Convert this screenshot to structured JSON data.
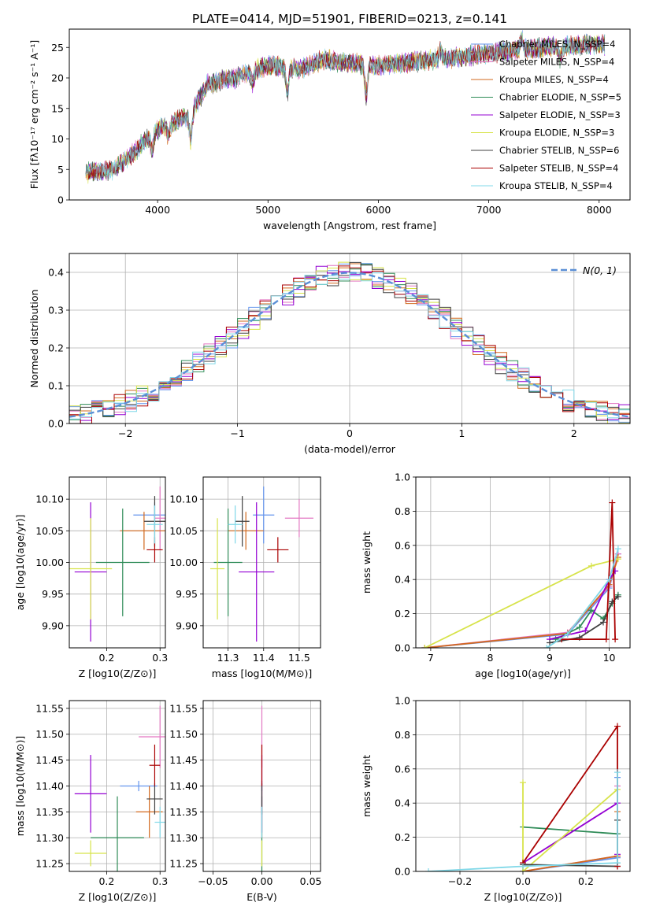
{
  "title": "PLATE=0414, MJD=51901, FIBERID=0213, z=0.141",
  "colors": {
    "chabrier_miles": "#6495ed",
    "salpeter_miles": "#e377c2",
    "kroupa_miles": "#d2691e",
    "chabrier_elodie": "#2e8b57",
    "salpeter_elodie": "#9400d3",
    "kroupa_elodie": "#d7e34a",
    "chabrier_stelib": "#404040",
    "salpeter_stelib": "#aa0000",
    "kroupa_stelib": "#80d8e8",
    "normal_curve": "#5b8fd6",
    "grid": "#b0b0b0"
  },
  "chart_data": [
    {
      "id": "spectrum",
      "type": "line",
      "xlabel": "wavelength [Angstrom, rest frame]",
      "ylabel": "Flux [fλ10⁻¹⁷ erg cm⁻² s⁻¹ A⁻¹]",
      "xlim": [
        3200,
        8280
      ],
      "ylim": [
        0,
        28
      ],
      "xticks": [
        4000,
        5000,
        6000,
        7000,
        8000
      ],
      "yticks": [
        0,
        5,
        10,
        15,
        20,
        25
      ],
      "x_range": [
        3350,
        8050
      ],
      "continuum": [
        [
          3350,
          4.5
        ],
        [
          3600,
          5
        ],
        [
          3800,
          8
        ],
        [
          3950,
          11
        ],
        [
          4100,
          12.5
        ],
        [
          4300,
          14
        ],
        [
          4450,
          19
        ],
        [
          4700,
          20
        ],
        [
          5000,
          22
        ],
        [
          5300,
          21.5
        ],
        [
          5500,
          23
        ],
        [
          6000,
          22
        ],
        [
          6500,
          23
        ],
        [
          7000,
          24
        ],
        [
          7500,
          25
        ],
        [
          8000,
          25.5
        ]
      ],
      "features": [
        [
          3950,
          -3
        ],
        [
          4100,
          -2
        ],
        [
          4300,
          -4
        ],
        [
          4860,
          -2
        ],
        [
          5175,
          -4
        ],
        [
          5890,
          -5
        ],
        [
          6563,
          1.5
        ],
        [
          7300,
          2
        ],
        [
          7650,
          -2
        ]
      ],
      "legend": [
        {
          "label": "Chabrier MILES, N_SSP=4",
          "color": "#6495ed"
        },
        {
          "label": "Salpeter MILES, N_SSP=4",
          "color": "#e377c2"
        },
        {
          "label": "Kroupa MILES, N_SSP=4",
          "color": "#d2691e"
        },
        {
          "label": "Chabrier ELODIE, N_SSP=5",
          "color": "#2e8b57"
        },
        {
          "label": "Salpeter ELODIE, N_SSP=3",
          "color": "#9400d3"
        },
        {
          "label": "Kroupa ELODIE, N_SSP=3",
          "color": "#d7e34a"
        },
        {
          "label": "Chabrier STELIB, N_SSP=6",
          "color": "#404040"
        },
        {
          "label": "Salpeter STELIB, N_SSP=4",
          "color": "#aa0000"
        },
        {
          "label": "Kroupa STELIB, N_SSP=4",
          "color": "#80d8e8"
        }
      ],
      "legend_position": "right",
      "grid": false
    },
    {
      "id": "residuals",
      "type": "step-histogram",
      "xlabel": "(data-model)/error",
      "ylabel": "Normed distribution",
      "xlim": [
        -2.5,
        2.5
      ],
      "ylim": [
        0,
        0.45
      ],
      "xticks": [
        -2,
        -1,
        0,
        1,
        2
      ],
      "yticks": [
        0.0,
        0.1,
        0.2,
        0.3,
        0.4
      ],
      "bin_width": 0.1,
      "curve_label": "N(0, 1)",
      "legend_position": "upper right",
      "grid": true
    },
    {
      "id": "age_vs_Z",
      "type": "errorbar",
      "xlabel": "Z [log10(Z/Z⊙)]",
      "ylabel": "age [log10(age/yr)]",
      "xlim": [
        0.13,
        0.31
      ],
      "ylim": [
        9.865,
        10.135
      ],
      "xticks": [
        0.2,
        0.3
      ],
      "yticks": [
        9.9,
        9.95,
        10.0,
        10.05,
        10.1
      ],
      "points": [
        {
          "x": 0.29,
          "y": 10.075,
          "xerr": 0.04,
          "yerr": 0.02,
          "color": "#6495ed"
        },
        {
          "x": 0.3,
          "y": 10.07,
          "xerr": 0.01,
          "yerr": 0.05,
          "color": "#e377c2"
        },
        {
          "x": 0.27,
          "y": 10.05,
          "xerr": 0.045,
          "yerr": 0.03,
          "color": "#d2691e"
        },
        {
          "x": 0.23,
          "y": 10.0,
          "xerr": 0.05,
          "yerr": 0.085,
          "color": "#2e8b57"
        },
        {
          "x": 0.17,
          "y": 9.985,
          "xerr": 0.03,
          "yerr": 0.11,
          "color": "#9400d3"
        },
        {
          "x": 0.17,
          "y": 9.99,
          "xerr": 0.04,
          "yerr": 0.08,
          "color": "#d7e34a"
        },
        {
          "x": 0.29,
          "y": 10.065,
          "xerr": 0.02,
          "yerr": 0.04,
          "color": "#404040"
        },
        {
          "x": 0.29,
          "y": 10.02,
          "xerr": 0.015,
          "yerr": 0.02,
          "color": "#aa0000"
        },
        {
          "x": 0.29,
          "y": 10.06,
          "xerr": 0.015,
          "yerr": 0.03,
          "color": "#80d8e8"
        }
      ]
    },
    {
      "id": "age_vs_mass",
      "type": "errorbar",
      "xlabel": "mass [log10(M/M⊙)]",
      "ylabel": "",
      "xlim": [
        11.23,
        11.56
      ],
      "ylim": [
        9.865,
        10.135
      ],
      "xticks": [
        11.3,
        11.4,
        11.5
      ],
      "yticks": [
        9.9,
        9.95,
        10.0,
        10.05,
        10.1
      ],
      "points": [
        {
          "x": 11.4,
          "y": 10.075,
          "xerr": 0.03,
          "yerr": 0.045,
          "color": "#6495ed"
        },
        {
          "x": 11.5,
          "y": 10.07,
          "xerr": 0.04,
          "yerr": 0.03,
          "color": "#e377c2"
        },
        {
          "x": 11.35,
          "y": 10.05,
          "xerr": 0.05,
          "yerr": 0.03,
          "color": "#d2691e"
        },
        {
          "x": 11.3,
          "y": 10.0,
          "xerr": 0.04,
          "yerr": 0.085,
          "color": "#2e8b57"
        },
        {
          "x": 11.38,
          "y": 9.985,
          "xerr": 0.05,
          "yerr": 0.11,
          "color": "#9400d3"
        },
        {
          "x": 11.27,
          "y": 9.99,
          "xerr": 0.02,
          "yerr": 0.08,
          "color": "#d7e34a"
        },
        {
          "x": 11.34,
          "y": 10.065,
          "xerr": 0.02,
          "yerr": 0.04,
          "color": "#404040"
        },
        {
          "x": 11.44,
          "y": 10.02,
          "xerr": 0.03,
          "yerr": 0.02,
          "color": "#aa0000"
        },
        {
          "x": 11.32,
          "y": 10.06,
          "xerr": 0.02,
          "yerr": 0.03,
          "color": "#80d8e8"
        }
      ]
    },
    {
      "id": "weight_vs_age",
      "type": "line",
      "xlabel": "age [log10(age/yr)]",
      "ylabel": "mass weight",
      "xlim": [
        6.75,
        10.35
      ],
      "ylim": [
        0,
        1.0
      ],
      "xticks": [
        7,
        8,
        9,
        10
      ],
      "yticks": [
        0.0,
        0.2,
        0.4,
        0.6,
        0.8,
        1.0
      ],
      "series": [
        {
          "color": "#6495ed",
          "points": [
            [
              6.9,
              0.0
            ],
            [
              9.3,
              0.08
            ],
            [
              10.0,
              0.35
            ],
            [
              10.15,
              0.55
            ]
          ]
        },
        {
          "color": "#e377c2",
          "points": [
            [
              6.9,
              0.0
            ],
            [
              9.3,
              0.09
            ],
            [
              10.0,
              0.36
            ],
            [
              10.15,
              0.55
            ]
          ]
        },
        {
          "color": "#d2691e",
          "points": [
            [
              6.9,
              0.0
            ],
            [
              9.3,
              0.085
            ],
            [
              10.0,
              0.37
            ],
            [
              10.15,
              0.53
            ]
          ]
        },
        {
          "color": "#2e8b57",
          "points": [
            [
              9.1,
              0.05
            ],
            [
              9.5,
              0.12
            ],
            [
              9.7,
              0.22
            ],
            [
              9.9,
              0.17
            ],
            [
              10.05,
              0.26
            ],
            [
              10.15,
              0.31
            ]
          ]
        },
        {
          "color": "#9400d3",
          "points": [
            [
              9.0,
              0.05
            ],
            [
              9.6,
              0.1
            ],
            [
              10.0,
              0.4
            ],
            [
              10.1,
              0.45
            ]
          ]
        },
        {
          "color": "#d7e34a",
          "points": [
            [
              6.9,
              0.0
            ],
            [
              9.7,
              0.48
            ],
            [
              10.15,
              0.52
            ]
          ]
        },
        {
          "color": "#404040",
          "points": [
            [
              9.0,
              0.03
            ],
            [
              9.5,
              0.06
            ],
            [
              9.9,
              0.15
            ],
            [
              10.05,
              0.27
            ],
            [
              10.15,
              0.3
            ]
          ]
        },
        {
          "color": "#aa0000",
          "points": [
            [
              9.2,
              0.05
            ],
            [
              9.95,
              0.05
            ],
            [
              10.05,
              0.85
            ],
            [
              10.1,
              0.05
            ]
          ]
        },
        {
          "color": "#80d8e8",
          "points": [
            [
              8.95,
              0.0
            ],
            [
              9.3,
              0.08
            ],
            [
              10.0,
              0.4
            ],
            [
              10.15,
              0.58
            ]
          ]
        }
      ],
      "grid": true
    },
    {
      "id": "mass_vs_Z",
      "type": "errorbar",
      "xlabel": "Z [log10(Z/Z⊙)]",
      "ylabel": "mass [log10(M/M⊙)]",
      "xlim": [
        0.13,
        0.31
      ],
      "ylim": [
        11.235,
        11.565
      ],
      "xticks": [
        0.2,
        0.3
      ],
      "yticks": [
        11.25,
        11.3,
        11.35,
        11.4,
        11.45,
        11.5,
        11.55
      ],
      "points": [
        {
          "x": 0.26,
          "y": 11.4,
          "xerr": 0.035,
          "yerr": 0.01,
          "color": "#6495ed"
        },
        {
          "x": 0.3,
          "y": 11.495,
          "xerr": 0.04,
          "yerr": 0.06,
          "color": "#e377c2"
        },
        {
          "x": 0.28,
          "y": 11.35,
          "xerr": 0.025,
          "yerr": 0.05,
          "color": "#d2691e"
        },
        {
          "x": 0.22,
          "y": 11.3,
          "xerr": 0.05,
          "yerr": 0.08,
          "color": "#2e8b57"
        },
        {
          "x": 0.17,
          "y": 11.385,
          "xerr": 0.03,
          "yerr": 0.075,
          "color": "#9400d3"
        },
        {
          "x": 0.17,
          "y": 11.27,
          "xerr": 0.03,
          "yerr": 0.025,
          "color": "#d7e34a"
        },
        {
          "x": 0.29,
          "y": 11.375,
          "xerr": 0.015,
          "yerr": 0.03,
          "color": "#404040"
        },
        {
          "x": 0.29,
          "y": 11.44,
          "xerr": 0.01,
          "yerr": 0.04,
          "color": "#aa0000"
        },
        {
          "x": 0.3,
          "y": 11.33,
          "xerr": 0.01,
          "yerr": 0.03,
          "color": "#80d8e8"
        }
      ]
    },
    {
      "id": "mass_vs_ebv",
      "type": "errorbar",
      "xlabel": "E(B-V)",
      "ylabel": "",
      "xlim": [
        -0.06,
        0.06
      ],
      "ylim": [
        11.235,
        11.565
      ],
      "xticks": [
        -0.05,
        0.0,
        0.05
      ],
      "yticks": [
        11.25,
        11.3,
        11.35,
        11.4,
        11.45,
        11.5,
        11.55
      ],
      "points": [
        {
          "x": 0.0,
          "y": 11.4,
          "xerr": 0.0,
          "yerr": 0.01,
          "color": "#6495ed"
        },
        {
          "x": 0.0,
          "y": 11.495,
          "xerr": 0.0,
          "yerr": 0.06,
          "color": "#e377c2"
        },
        {
          "x": 0.0,
          "y": 11.35,
          "xerr": 0.0,
          "yerr": 0.05,
          "color": "#d2691e"
        },
        {
          "x": 0.0,
          "y": 11.3,
          "xerr": 0.0,
          "yerr": 0.08,
          "color": "#2e8b57"
        },
        {
          "x": 0.0,
          "y": 11.385,
          "xerr": 0.0,
          "yerr": 0.075,
          "color": "#9400d3"
        },
        {
          "x": 0.0,
          "y": 11.27,
          "xerr": 0.0,
          "yerr": 0.025,
          "color": "#d7e34a"
        },
        {
          "x": 0.0,
          "y": 11.375,
          "xerr": 0.0,
          "yerr": 0.03,
          "color": "#404040"
        },
        {
          "x": 0.0,
          "y": 11.44,
          "xerr": 0.0,
          "yerr": 0.04,
          "color": "#aa0000"
        },
        {
          "x": 0.0,
          "y": 11.33,
          "xerr": 0.0,
          "yerr": 0.03,
          "color": "#80d8e8"
        }
      ]
    },
    {
      "id": "weight_vs_Z",
      "type": "line",
      "xlabel": "Z [log10(Z/Z⊙)]",
      "ylabel": "mass weight",
      "xlim": [
        -0.34,
        0.34
      ],
      "ylim": [
        0,
        1.0
      ],
      "xticks": [
        -0.2,
        0.0,
        0.2
      ],
      "yticks": [
        0.0,
        0.2,
        0.4,
        0.6,
        0.8,
        1.0
      ],
      "series": [
        {
          "color": "#6495ed",
          "points": [
            [
              0.0,
              0.0
            ],
            [
              0.3,
              0.08
            ],
            [
              0.3,
              0.55
            ]
          ]
        },
        {
          "color": "#e377c2",
          "points": [
            [
              0.0,
              0.0
            ],
            [
              0.3,
              0.09
            ],
            [
              0.3,
              0.5
            ]
          ]
        },
        {
          "color": "#d2691e",
          "points": [
            [
              0.0,
              0.0
            ],
            [
              0.3,
              0.09
            ],
            [
              0.3,
              0.35
            ]
          ]
        },
        {
          "color": "#2e8b57",
          "points": [
            [
              0.0,
              0.26
            ],
            [
              0.3,
              0.22
            ],
            [
              0.3,
              0.05
            ]
          ]
        },
        {
          "color": "#9400d3",
          "points": [
            [
              0.0,
              0.05
            ],
            [
              0.3,
              0.4
            ],
            [
              0.3,
              0.1
            ]
          ]
        },
        {
          "color": "#d7e34a",
          "points": [
            [
              0.0,
              0.52
            ],
            [
              0.0,
              0.0
            ],
            [
              0.3,
              0.48
            ]
          ]
        },
        {
          "color": "#404040",
          "points": [
            [
              0.0,
              0.04
            ],
            [
              0.3,
              0.03
            ],
            [
              0.3,
              0.3
            ]
          ]
        },
        {
          "color": "#aa0000",
          "points": [
            [
              0.0,
              0.05
            ],
            [
              0.3,
              0.85
            ],
            [
              0.3,
              0.03
            ]
          ]
        },
        {
          "color": "#80d8e8",
          "points": [
            [
              -0.3,
              0.0
            ],
            [
              0.0,
              0.03
            ],
            [
              0.3,
              0.05
            ],
            [
              0.3,
              0.58
            ]
          ]
        }
      ],
      "grid": true
    }
  ]
}
